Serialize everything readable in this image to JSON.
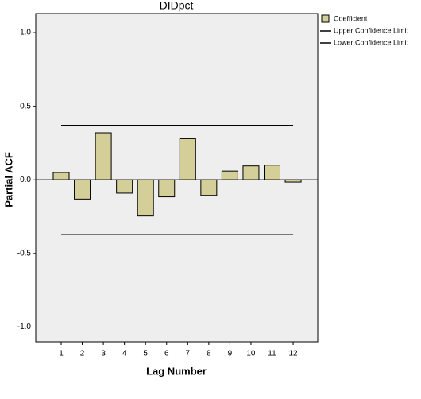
{
  "chart_data": {
    "type": "bar",
    "title": "DIDpct",
    "x_label": "Lag Number",
    "y_label": "Partial ACF",
    "categories": [
      "1",
      "2",
      "3",
      "4",
      "5",
      "6",
      "7",
      "8",
      "9",
      "10",
      "11",
      "12"
    ],
    "series": [
      {
        "name": "Coefficient",
        "type": "bar",
        "color": "#d4cf98",
        "values": [
          0.05,
          -0.13,
          0.32,
          -0.09,
          -0.245,
          -0.115,
          0.28,
          -0.105,
          0.06,
          0.095,
          0.1,
          -0.015
        ]
      },
      {
        "name": "Upper Confidence Limit",
        "type": "line",
        "color": "#000000",
        "values": [
          0.37,
          0.37,
          0.37,
          0.37,
          0.37,
          0.37,
          0.37,
          0.37,
          0.37,
          0.37,
          0.37,
          0.37
        ]
      },
      {
        "name": "Lower Confidence Limit",
        "type": "line",
        "color": "#000000",
        "values": [
          -0.37,
          -0.37,
          -0.37,
          -0.37,
          -0.37,
          -0.37,
          -0.37,
          -0.37,
          -0.37,
          -0.37,
          -0.37,
          -0.37
        ]
      }
    ],
    "ylim": [
      -1.1,
      1.13
    ],
    "yticks": [
      {
        "value": -1,
        "label": "-1.0"
      },
      {
        "value": -0.5,
        "label": "-0.5"
      },
      {
        "value": 0,
        "label": "0.0"
      },
      {
        "value": 0.5,
        "label": "0.5"
      },
      {
        "value": 1,
        "label": "1.0"
      }
    ],
    "legend": "right"
  }
}
